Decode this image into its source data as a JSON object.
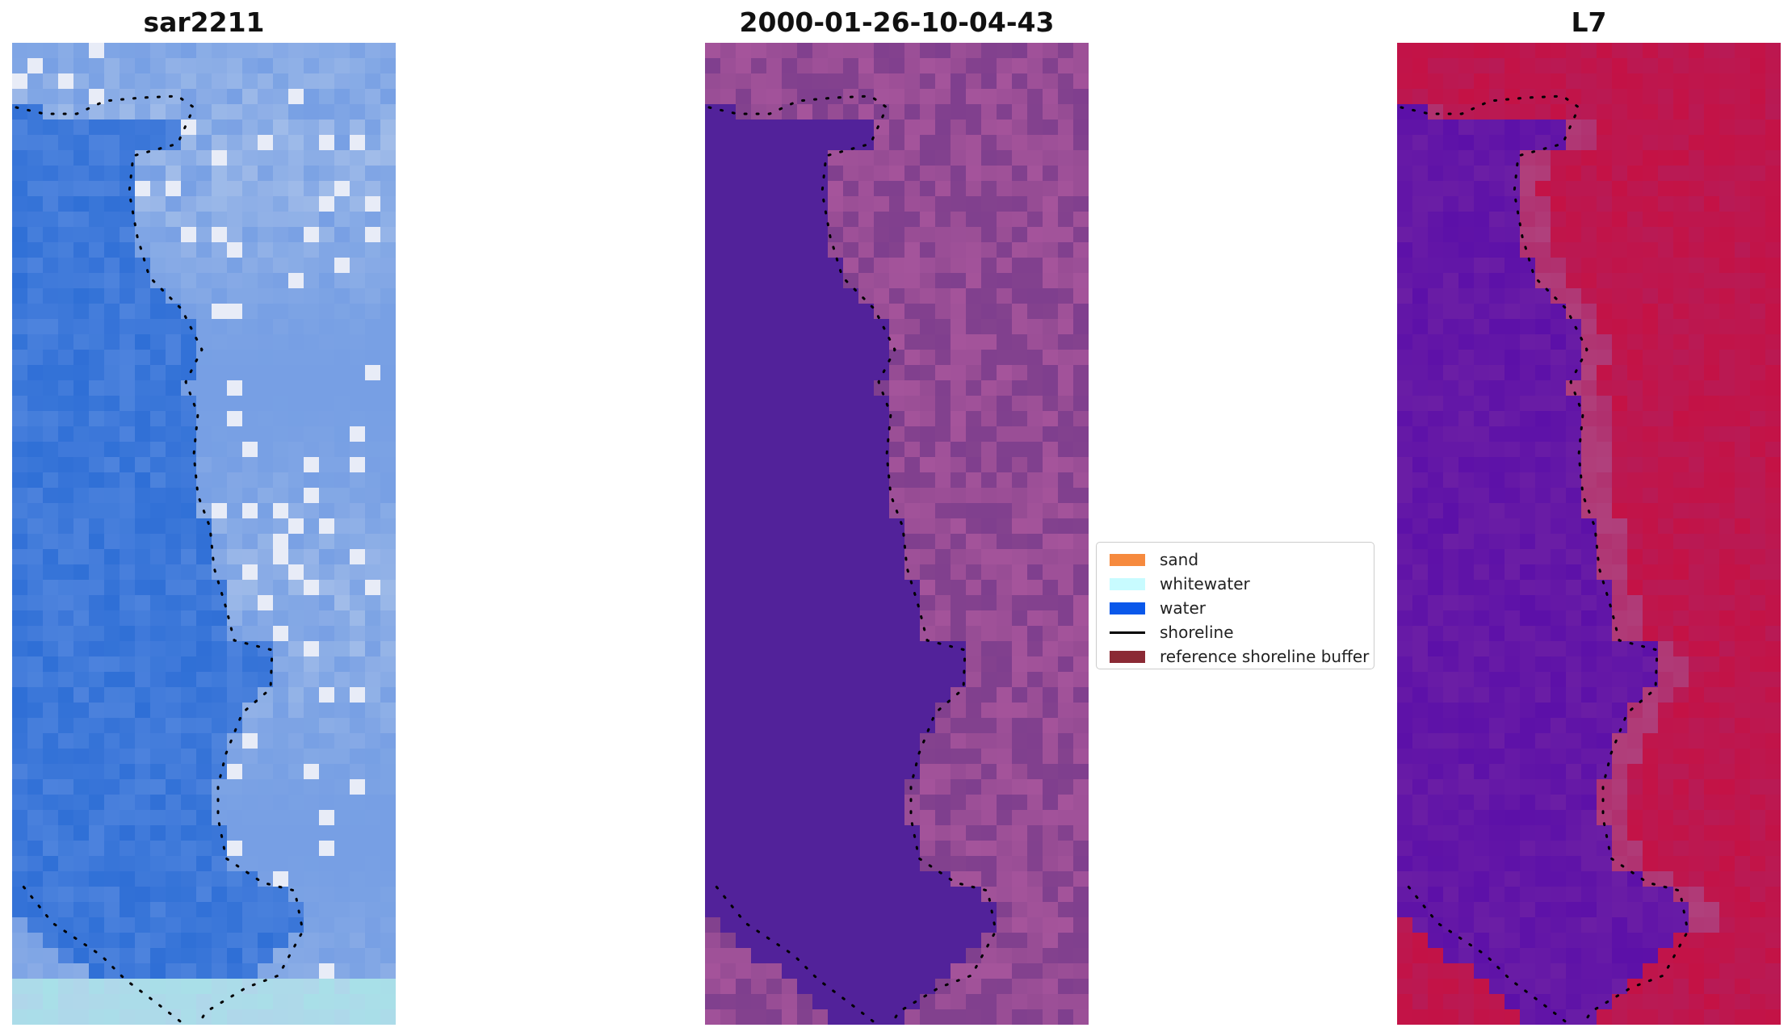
{
  "panels": [
    {
      "title": "sar2211",
      "style": "rgb",
      "colors": {
        "dark": "#2f6fd6",
        "mid": "#5b8ce0",
        "light": "#b8ccec",
        "white": "#e8ecf7",
        "cyan": "#a8e0e8"
      }
    },
    {
      "title": "2000-01-26-10-04-43",
      "style": "classified",
      "colors": {
        "water": "#52229a",
        "land_a": "#7f3f8e",
        "land_b": "#a5549b",
        "land_c": "#8b468f"
      }
    },
    {
      "title": "L7",
      "style": "index",
      "colors": {
        "water": "#5c10a8",
        "water_b": "#6b1ea5",
        "land": "#c41245",
        "land_b": "#b02060",
        "buffer": "#b0407c"
      }
    }
  ],
  "shoreline_color": "#000000",
  "legend": {
    "items": [
      {
        "label": "sand",
        "kind": "patch",
        "color": "#f68a3e"
      },
      {
        "label": "whitewater",
        "kind": "patch",
        "color": "#c8fbff"
      },
      {
        "label": "water",
        "kind": "patch",
        "color": "#0a58ea"
      },
      {
        "label": "shoreline",
        "kind": "line",
        "color": "#000000"
      },
      {
        "label": "reference shoreline buffer",
        "kind": "patch",
        "color": "#8b2a35"
      }
    ]
  }
}
